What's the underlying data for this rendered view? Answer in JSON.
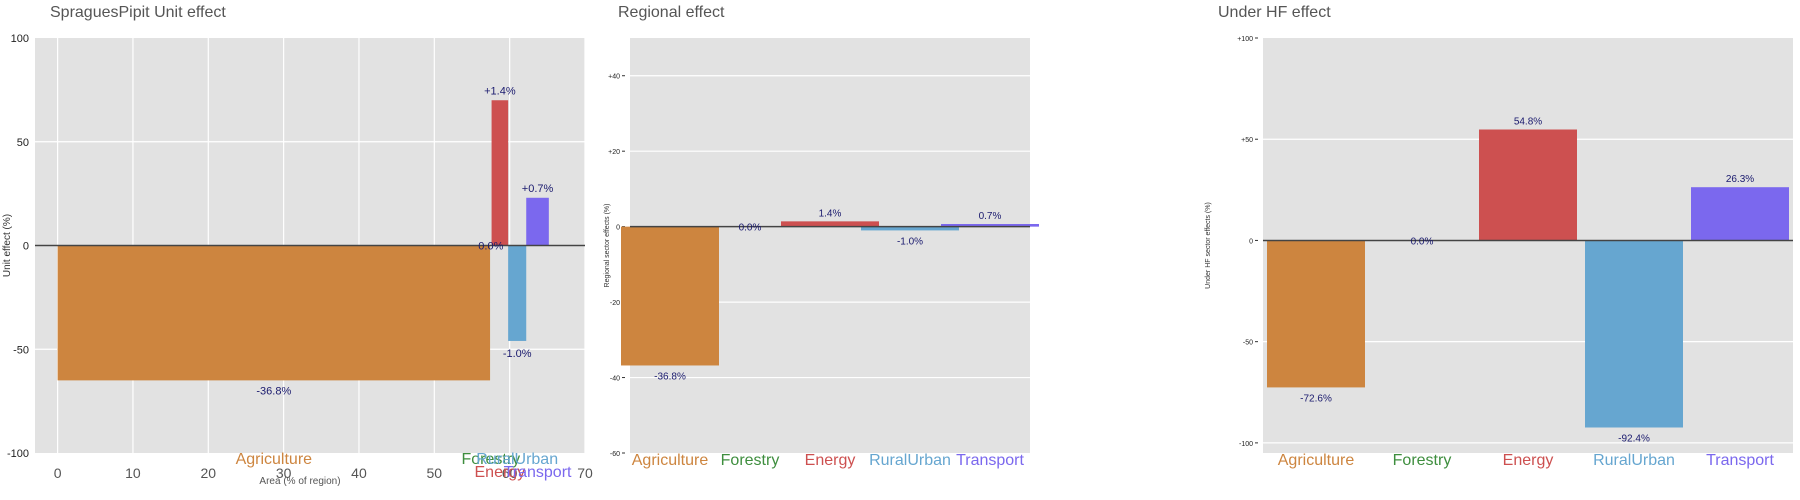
{
  "chart_data": [
    {
      "type": "bar",
      "title": "SpraguesPipit Unit effect",
      "xlabel": "Area (% of region)",
      "ylabel": "Unit effect (%)",
      "xlim": [
        -3,
        70
      ],
      "ylim": [
        -100,
        100
      ],
      "xticks": [
        0,
        10,
        20,
        30,
        40,
        50,
        60,
        70
      ],
      "yticks": [
        -100,
        -50,
        0,
        50,
        100
      ],
      "ytick_labels": [
        "-100",
        "-50",
        "0",
        "50",
        "100"
      ],
      "bars": [
        {
          "name": "Agriculture",
          "x0": 0,
          "x1": 57.4,
          "value": -65,
          "label": "-36.8%",
          "color": "#CD853F",
          "label_color": "#CD853F"
        },
        {
          "name": "Forestry",
          "x0": 57.4,
          "x1": 57.6,
          "value": 0,
          "label": "0.0%",
          "color": "#3E8E3E",
          "label_color": "#3E8E3E"
        },
        {
          "name": "Energy",
          "x0": 57.6,
          "x1": 59.8,
          "value": 70,
          "label": "+1.4%",
          "color": "#CD5050",
          "label_color": "#CD5050"
        },
        {
          "name": "RuralUrban",
          "x0": 59.8,
          "x1": 62.2,
          "value": -46,
          "label": "-1.0%",
          "color": "#66A6D0",
          "label_color": "#66A6D0"
        },
        {
          "name": "Transport",
          "x0": 62.2,
          "x1": 65.2,
          "value": 23,
          "label": "+0.7%",
          "color": "#7B68EE",
          "label_color": "#7B68EE"
        }
      ]
    },
    {
      "type": "bar",
      "title": "Regional effect",
      "xlabel": "",
      "ylabel": "Regional sector effects (%)",
      "ylim": [
        -60,
        50
      ],
      "yticks": [
        -60,
        -40,
        -20,
        0,
        20,
        40
      ],
      "ytick_labels": [
        "-60",
        "-40",
        "-20",
        "0",
        "+20",
        "+40"
      ],
      "categories": [
        "Agriculture",
        "Forestry",
        "Energy",
        "RuralUrban",
        "Transport"
      ],
      "values": [
        -36.8,
        0.0,
        1.4,
        -1.0,
        0.7
      ],
      "labels": [
        "-36.8%",
        "0.0%",
        "1.4%",
        "-1.0%",
        "0.7%"
      ],
      "colors": [
        "#CD853F",
        "#3E8E3E",
        "#CD5050",
        "#66A6D0",
        "#7B68EE"
      ]
    },
    {
      "type": "bar",
      "title": "Under HF effect",
      "xlabel": "",
      "ylabel": "Under HF sector effects (%)",
      "ylim": [
        -105,
        100
      ],
      "yticks": [
        -100,
        -50,
        0,
        50,
        100
      ],
      "ytick_labels": [
        "-100",
        "-50",
        "0",
        "+50",
        "+100"
      ],
      "categories": [
        "Agriculture",
        "Forestry",
        "Energy",
        "RuralUrban",
        "Transport"
      ],
      "values": [
        -72.6,
        0.0,
        54.8,
        -92.4,
        26.3
      ],
      "labels": [
        "-72.6%",
        "0.0%",
        "54.8%",
        "-92.4%",
        "26.3%"
      ],
      "colors": [
        "#CD853F",
        "#3E8E3E",
        "#CD5050",
        "#66A6D0",
        "#7B68EE"
      ]
    }
  ]
}
